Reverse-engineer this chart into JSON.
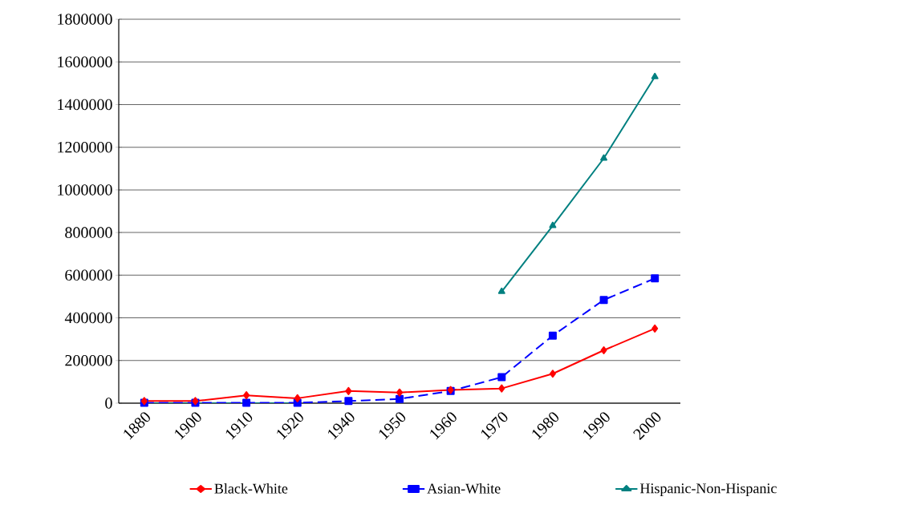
{
  "chart_data": {
    "type": "line",
    "categories": [
      "1880",
      "1900",
      "1910",
      "1920",
      "1940",
      "1950",
      "1960",
      "1970",
      "1980",
      "1990",
      "2000"
    ],
    "series": [
      {
        "name": "Black-White",
        "color": "#ff0000",
        "marker": "diamond",
        "line_style": "solid",
        "values": [
          10000,
          10000,
          37000,
          23000,
          57000,
          50000,
          62000,
          69000,
          138000,
          248000,
          350000
        ]
      },
      {
        "name": "Asian-White",
        "color": "#0000ff",
        "marker": "square",
        "line_style": "dashed",
        "values": [
          2000,
          2000,
          2000,
          2000,
          10000,
          20000,
          57000,
          122000,
          317000,
          484000,
          585000
        ]
      },
      {
        "name": "Hispanic-Non-Hispanic",
        "color": "#008080",
        "marker": "triangle",
        "line_style": "solid",
        "values": [
          0,
          0,
          0,
          0,
          null,
          null,
          null,
          523000,
          832000,
          1148000,
          1530000
        ]
      }
    ],
    "ylim": [
      0,
      1800000
    ],
    "yticks": [
      0,
      200000,
      400000,
      600000,
      800000,
      1000000,
      1200000,
      1400000,
      1600000,
      1800000
    ],
    "grid": "y",
    "legend": "bottom"
  }
}
